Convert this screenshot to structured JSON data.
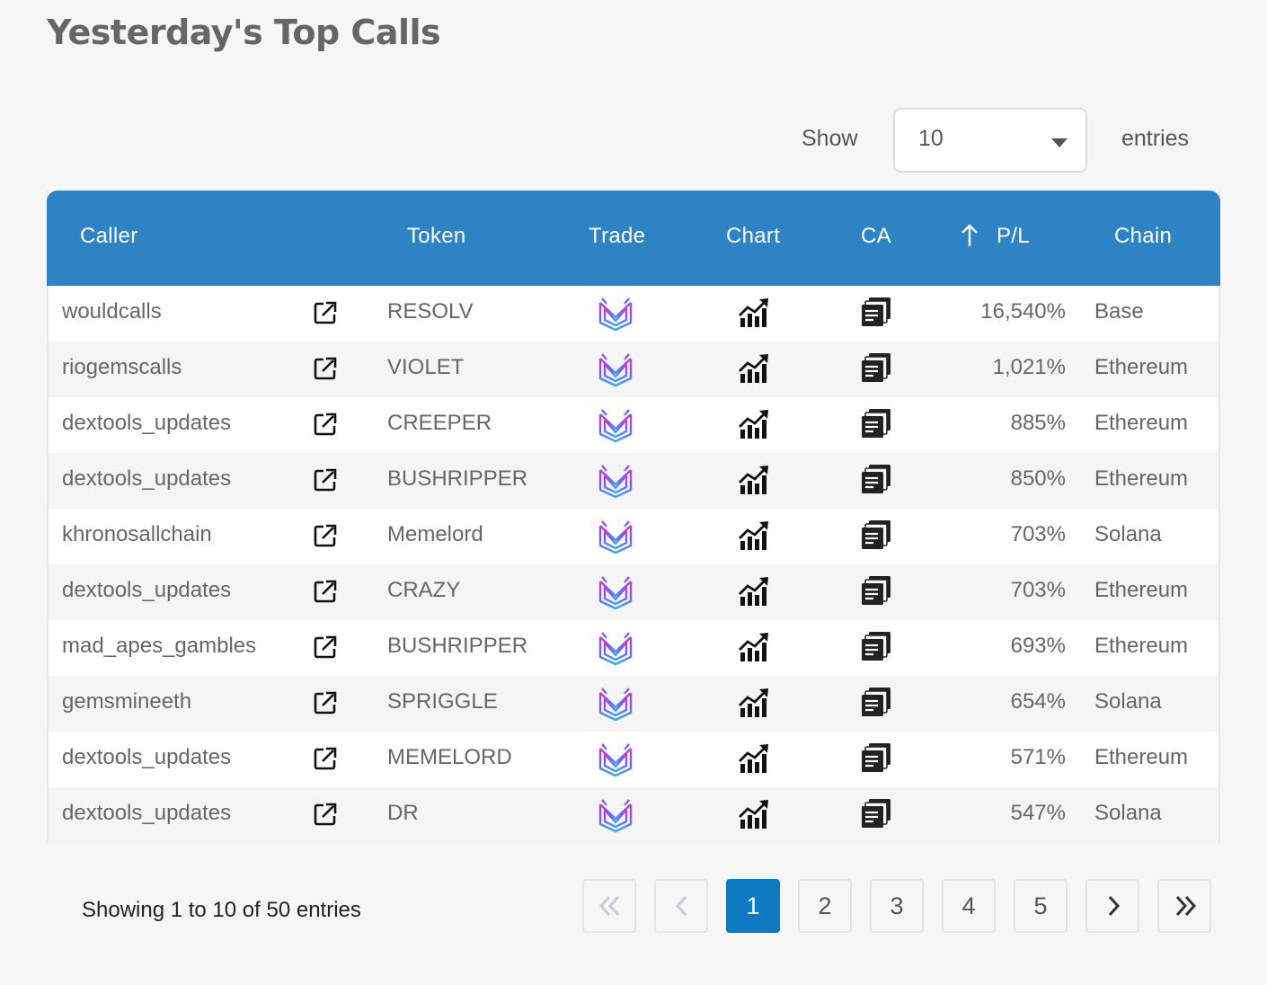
{
  "page": {
    "title": "Yesterday's Top Calls"
  },
  "length_menu": {
    "show_label": "Show",
    "selected": "10",
    "entries_label": "entries"
  },
  "table": {
    "headers": {
      "caller": "Caller",
      "token": "Token",
      "trade": "Trade",
      "chart": "Chart",
      "ca": "CA",
      "pl": "P/L",
      "chain": "Chain"
    },
    "sort": {
      "column": "P/L",
      "icon": "arrow-up-icon"
    },
    "row_icons": {
      "caller_link": "external-link-icon",
      "trade": "trade-logo-icon",
      "chart": "chart-growth-icon",
      "ca": "copy-document-icon"
    },
    "rows": [
      {
        "caller": "wouldcalls",
        "token": "RESOLV",
        "pl": "16,540%",
        "chain": "Base"
      },
      {
        "caller": "riogemscalls",
        "token": "VIOLET",
        "pl": "1,021%",
        "chain": "Ethereum"
      },
      {
        "caller": "dextools_updates",
        "token": "CREEPER",
        "pl": "885%",
        "chain": "Ethereum"
      },
      {
        "caller": "dextools_updates",
        "token": "BUSHRIPPER",
        "pl": "850%",
        "chain": "Ethereum"
      },
      {
        "caller": "khronosallchain",
        "token": "Memelord",
        "pl": "703%",
        "chain": "Solana"
      },
      {
        "caller": "dextools_updates",
        "token": "CRAZY",
        "pl": "703%",
        "chain": "Ethereum"
      },
      {
        "caller": "mad_apes_gambles",
        "token": "BUSHRIPPER",
        "pl": "693%",
        "chain": "Ethereum"
      },
      {
        "caller": "gemsmineeth",
        "token": "SPRIGGLE",
        "pl": "654%",
        "chain": "Solana"
      },
      {
        "caller": "dextools_updates",
        "token": "MEMELORD",
        "pl": "571%",
        "chain": "Ethereum"
      },
      {
        "caller": "dextools_updates",
        "token": "DR",
        "pl": "547%",
        "chain": "Solana"
      }
    ]
  },
  "pagination": {
    "info": "Showing 1 to 10 of 50 entries",
    "pages": [
      "1",
      "2",
      "3",
      "4",
      "5"
    ],
    "current": "1"
  },
  "colors": {
    "header": "#2e83c4",
    "active_page": "#0d7ac1",
    "background": "#f6f6f6"
  }
}
